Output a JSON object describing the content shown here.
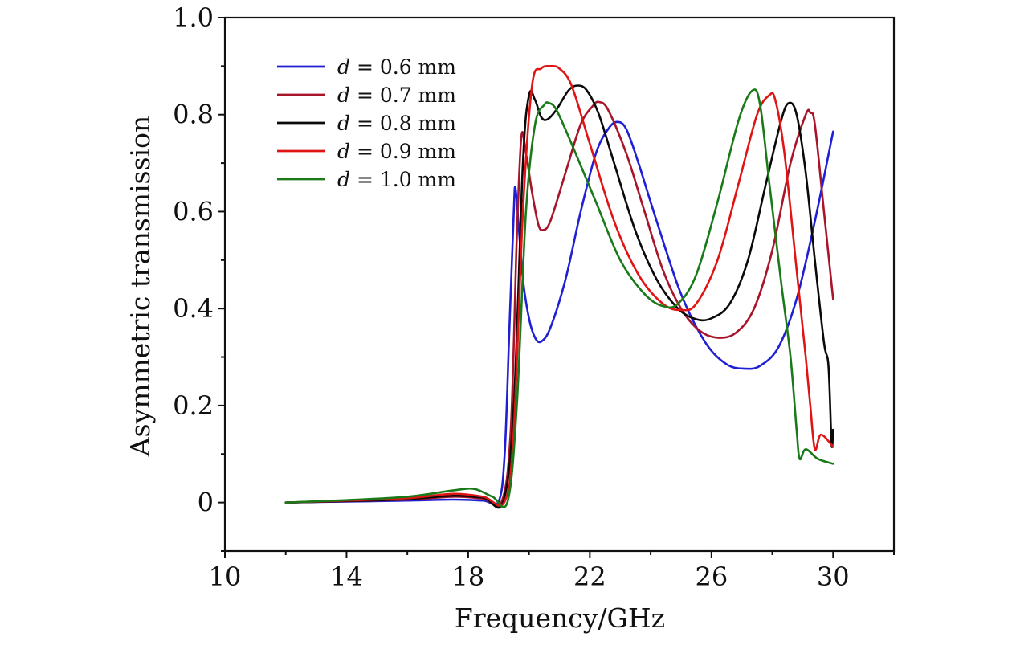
{
  "chart_data": {
    "type": "line",
    "title": "",
    "xlabel": "Frequency/GHz",
    "ylabel": "Asymmetric transmission",
    "xlim": [
      10,
      32
    ],
    "ylim": [
      -0.1,
      1.0
    ],
    "xticks": [
      10,
      14,
      18,
      22,
      26,
      30
    ],
    "xtick_labels": [
      "10",
      "14",
      "18",
      "22",
      "26",
      "30"
    ],
    "yticks": [
      0,
      0.2,
      0.4,
      0.6,
      0.8,
      1.0
    ],
    "ytick_labels": [
      "0",
      "0.2",
      "0.4",
      "0.6",
      "0.8",
      "1.0"
    ],
    "grid": false,
    "legend_position": "top-left",
    "series": [
      {
        "name": "d = 0.6 mm",
        "legend_var": "d",
        "legend_rest": " = 0.6 mm",
        "color": "#1f1fd6",
        "points": [
          [
            12,
            0
          ],
          [
            14,
            0.002
          ],
          [
            16,
            0.004
          ],
          [
            17.5,
            0.006
          ],
          [
            18.5,
            0.004
          ],
          [
            19.0,
            0.002
          ],
          [
            19.2,
            0.1
          ],
          [
            19.35,
            0.35
          ],
          [
            19.5,
            0.6
          ],
          [
            19.55,
            0.65
          ],
          [
            19.65,
            0.58
          ],
          [
            19.8,
            0.46
          ],
          [
            20.0,
            0.38
          ],
          [
            20.2,
            0.34
          ],
          [
            20.4,
            0.332
          ],
          [
            20.7,
            0.36
          ],
          [
            21.2,
            0.46
          ],
          [
            21.7,
            0.6
          ],
          [
            22.2,
            0.72
          ],
          [
            22.6,
            0.77
          ],
          [
            22.9,
            0.785
          ],
          [
            23.2,
            0.77
          ],
          [
            23.6,
            0.7
          ],
          [
            24.2,
            0.58
          ],
          [
            25.0,
            0.43
          ],
          [
            25.8,
            0.33
          ],
          [
            26.5,
            0.285
          ],
          [
            27.1,
            0.276
          ],
          [
            27.6,
            0.282
          ],
          [
            28.2,
            0.32
          ],
          [
            28.8,
            0.42
          ],
          [
            29.4,
            0.58
          ],
          [
            30.0,
            0.765
          ]
        ]
      },
      {
        "name": "d = 0.7 mm",
        "legend_var": "d",
        "legend_rest": " = 0.7 mm",
        "color": "#a8142a",
        "points": [
          [
            12,
            0
          ],
          [
            14,
            0.003
          ],
          [
            16,
            0.006
          ],
          [
            17.5,
            0.012
          ],
          [
            18.5,
            0.008
          ],
          [
            19.1,
            0.002
          ],
          [
            19.4,
            0.15
          ],
          [
            19.6,
            0.55
          ],
          [
            19.75,
            0.755
          ],
          [
            19.9,
            0.72
          ],
          [
            20.1,
            0.64
          ],
          [
            20.3,
            0.575
          ],
          [
            20.45,
            0.562
          ],
          [
            20.7,
            0.58
          ],
          [
            21.2,
            0.68
          ],
          [
            21.7,
            0.78
          ],
          [
            22.1,
            0.818
          ],
          [
            22.3,
            0.826
          ],
          [
            22.6,
            0.81
          ],
          [
            23.2,
            0.72
          ],
          [
            23.8,
            0.6
          ],
          [
            24.4,
            0.48
          ],
          [
            25.0,
            0.4
          ],
          [
            25.6,
            0.355
          ],
          [
            26.2,
            0.34
          ],
          [
            26.8,
            0.35
          ],
          [
            27.4,
            0.4
          ],
          [
            28.0,
            0.52
          ],
          [
            28.6,
            0.7
          ],
          [
            29.1,
            0.8
          ],
          [
            29.25,
            0.804
          ],
          [
            29.4,
            0.78
          ],
          [
            29.7,
            0.6
          ],
          [
            30.0,
            0.42
          ]
        ]
      },
      {
        "name": "d = 0.8 mm",
        "legend_var": "d",
        "legend_rest": " = 0.8 mm",
        "color": "#0a0a0a",
        "points": [
          [
            12,
            0
          ],
          [
            14,
            0.003
          ],
          [
            16,
            0.007
          ],
          [
            17.5,
            0.014
          ],
          [
            18.5,
            0.01
          ],
          [
            19.15,
            0.002
          ],
          [
            19.5,
            0.2
          ],
          [
            19.8,
            0.7
          ],
          [
            20.0,
            0.84
          ],
          [
            20.2,
            0.83
          ],
          [
            20.4,
            0.795
          ],
          [
            20.6,
            0.79
          ],
          [
            20.9,
            0.81
          ],
          [
            21.3,
            0.85
          ],
          [
            21.6,
            0.86
          ],
          [
            21.9,
            0.85
          ],
          [
            22.3,
            0.8
          ],
          [
            22.8,
            0.7
          ],
          [
            23.5,
            0.56
          ],
          [
            24.2,
            0.46
          ],
          [
            24.9,
            0.4
          ],
          [
            25.5,
            0.378
          ],
          [
            26.0,
            0.38
          ],
          [
            26.6,
            0.41
          ],
          [
            27.2,
            0.5
          ],
          [
            27.8,
            0.66
          ],
          [
            28.3,
            0.79
          ],
          [
            28.55,
            0.824
          ],
          [
            28.8,
            0.8
          ],
          [
            29.1,
            0.68
          ],
          [
            29.4,
            0.5
          ],
          [
            29.7,
            0.33
          ],
          [
            29.85,
            0.28
          ],
          [
            29.95,
            0.12
          ],
          [
            30.0,
            0.15
          ]
        ]
      },
      {
        "name": "d = 0.9 mm",
        "legend_var": "d",
        "legend_rest": " = 0.9 mm",
        "color": "#e01414",
        "points": [
          [
            12,
            0
          ],
          [
            14,
            0.004
          ],
          [
            16,
            0.009
          ],
          [
            17.5,
            0.018
          ],
          [
            18.5,
            0.012
          ],
          [
            19.2,
            0.002
          ],
          [
            19.5,
            0.15
          ],
          [
            19.8,
            0.6
          ],
          [
            20.1,
            0.86
          ],
          [
            20.4,
            0.895
          ],
          [
            20.7,
            0.9
          ],
          [
            21.0,
            0.895
          ],
          [
            21.4,
            0.86
          ],
          [
            22.0,
            0.74
          ],
          [
            22.8,
            0.58
          ],
          [
            23.6,
            0.47
          ],
          [
            24.4,
            0.41
          ],
          [
            25.0,
            0.397
          ],
          [
            25.5,
            0.41
          ],
          [
            26.2,
            0.5
          ],
          [
            26.9,
            0.66
          ],
          [
            27.5,
            0.8
          ],
          [
            27.9,
            0.84
          ],
          [
            28.1,
            0.83
          ],
          [
            28.4,
            0.72
          ],
          [
            28.8,
            0.48
          ],
          [
            29.1,
            0.3
          ],
          [
            29.25,
            0.2
          ],
          [
            29.4,
            0.11
          ],
          [
            29.6,
            0.14
          ],
          [
            30.0,
            0.115
          ]
        ]
      },
      {
        "name": "d = 1.0 mm",
        "legend_var": "d",
        "legend_rest": " = 1.0 mm",
        "color": "#1a7a1a",
        "points": [
          [
            12,
            0
          ],
          [
            14,
            0.005
          ],
          [
            16,
            0.012
          ],
          [
            17.5,
            0.025
          ],
          [
            18.2,
            0.028
          ],
          [
            18.8,
            0.012
          ],
          [
            19.3,
            0.003
          ],
          [
            19.6,
            0.2
          ],
          [
            19.9,
            0.6
          ],
          [
            20.2,
            0.78
          ],
          [
            20.5,
            0.82
          ],
          [
            20.65,
            0.824
          ],
          [
            20.9,
            0.81
          ],
          [
            21.4,
            0.74
          ],
          [
            22.2,
            0.62
          ],
          [
            23.0,
            0.5
          ],
          [
            23.8,
            0.43
          ],
          [
            24.4,
            0.405
          ],
          [
            24.9,
            0.41
          ],
          [
            25.5,
            0.47
          ],
          [
            26.2,
            0.62
          ],
          [
            26.9,
            0.79
          ],
          [
            27.35,
            0.85
          ],
          [
            27.6,
            0.82
          ],
          [
            27.9,
            0.66
          ],
          [
            28.3,
            0.45
          ],
          [
            28.6,
            0.3
          ],
          [
            28.8,
            0.15
          ],
          [
            28.9,
            0.09
          ],
          [
            29.1,
            0.11
          ],
          [
            29.5,
            0.09
          ],
          [
            30.0,
            0.08
          ]
        ]
      }
    ]
  }
}
